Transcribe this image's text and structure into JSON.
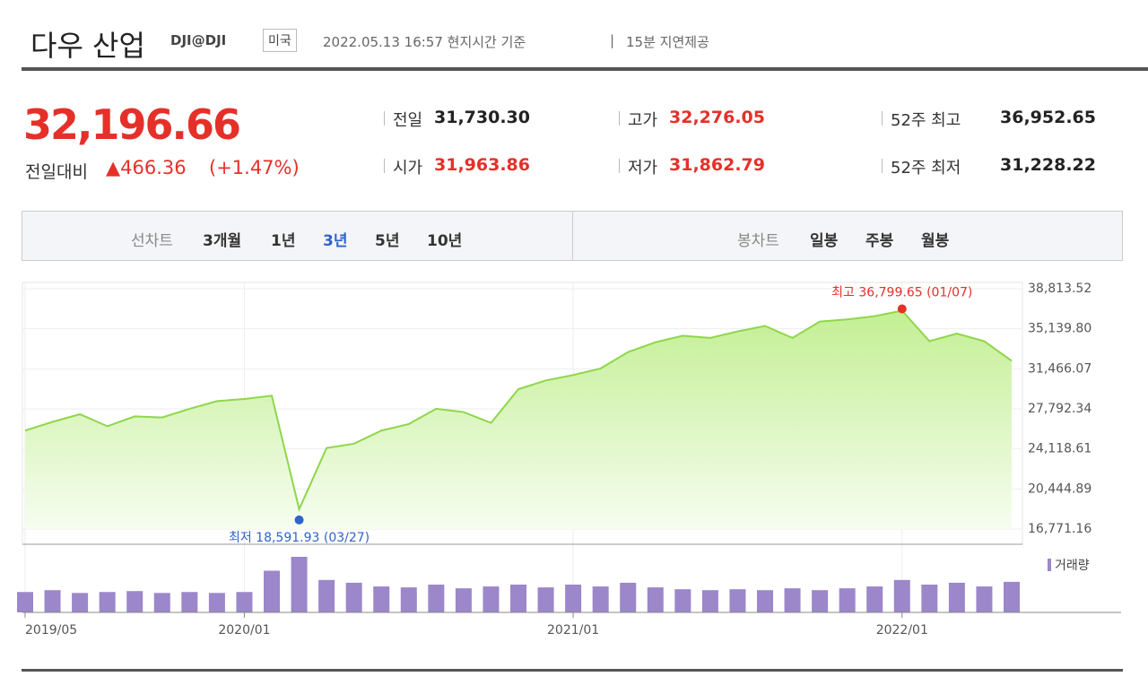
{
  "header": {
    "title": "다우 산업",
    "code": "DJI@DJI",
    "badge": "미국",
    "time": "2022.05.13 16:57 현지시간 기준",
    "delay": "15분 지연제공"
  },
  "quote": {
    "price": "32,196.66",
    "change_label": "전일대비",
    "change": "▲466.36",
    "change_pct": "(+1.47%)",
    "stats": [
      {
        "label": "전일",
        "value": "31,730.30",
        "red": false
      },
      {
        "label": "고가",
        "value": "32,276.05",
        "red": true
      },
      {
        "label": "52주 최고",
        "value": "36,952.65",
        "red": false
      },
      {
        "label": "시가",
        "value": "31,963.86",
        "red": true
      },
      {
        "label": "저가",
        "value": "31,862.79",
        "red": true
      },
      {
        "label": "52주 최저",
        "value": "31,228.22",
        "red": false
      }
    ]
  },
  "tabs": {
    "line_label": "선차트",
    "line_items": [
      "3개월",
      "1년",
      "3년",
      "5년",
      "10년"
    ],
    "selected": "3년",
    "candle_label": "봉차트",
    "candle_items": [
      "일봉",
      "주봉",
      "월봉"
    ]
  },
  "chart_data": {
    "type": "area",
    "x": [
      "2019/05",
      "2019/06",
      "2019/07",
      "2019/08",
      "2019/09",
      "2019/10",
      "2019/11",
      "2019/12",
      "2020/01",
      "2020/02",
      "2020/03",
      "2020/04",
      "2020/05",
      "2020/06",
      "2020/07",
      "2020/08",
      "2020/09",
      "2020/10",
      "2020/11",
      "2020/12",
      "2021/01",
      "2021/02",
      "2021/03",
      "2021/04",
      "2021/05",
      "2021/06",
      "2021/07",
      "2021/08",
      "2021/09",
      "2021/10",
      "2021/11",
      "2021/12",
      "2022/01",
      "2022/02",
      "2022/03",
      "2022/04",
      "2022/05"
    ],
    "series": [
      {
        "name": "가격",
        "color": "#8fd64b",
        "values": [
          25800,
          26600,
          27300,
          26200,
          27100,
          27000,
          27800,
          28500,
          28700,
          29000,
          18591.93,
          24200,
          24600,
          25800,
          26400,
          27800,
          27500,
          26500,
          29600,
          30400,
          30900,
          31500,
          33000,
          33900,
          34500,
          34300,
          34900,
          35400,
          34300,
          35800,
          36000,
          36300,
          36799.65,
          34000,
          34700,
          34000,
          32200
        ]
      },
      {
        "name": "거래량",
        "color": "#9b87c9",
        "axis": "volume",
        "values": [
          22,
          24,
          21,
          22,
          23,
          21,
          22,
          21,
          22,
          45,
          60,
          35,
          32,
          28,
          27,
          30,
          26,
          28,
          30,
          27,
          30,
          28,
          32,
          27,
          25,
          24,
          25,
          24,
          26,
          24,
          26,
          28,
          35,
          30,
          32,
          28,
          33
        ]
      }
    ],
    "ylim": [
      16771.16,
      38813.52
    ],
    "yticks": [
      {
        "value": 16771.16,
        "label": "16,771.16"
      },
      {
        "value": 20444.89,
        "label": "20,444.89"
      },
      {
        "value": 24118.61,
        "label": "24,118.61"
      },
      {
        "value": 27792.34,
        "label": "27,792.34"
      },
      {
        "value": 31466.07,
        "label": "31,466.07"
      },
      {
        "value": 35139.8,
        "label": "35,139.80"
      },
      {
        "value": 38813.52,
        "label": "38,813.52"
      }
    ],
    "xticks": [
      "2019/05",
      "2020/01",
      "2021/01",
      "2022/01"
    ],
    "annotations": [
      {
        "text": "최고 36,799.65 (01/07)",
        "index": 32,
        "color": "#e5302a"
      },
      {
        "text": "최저 18,591.93 (03/27)",
        "index": 10,
        "color": "#2f63c9"
      }
    ],
    "grid": true
  }
}
